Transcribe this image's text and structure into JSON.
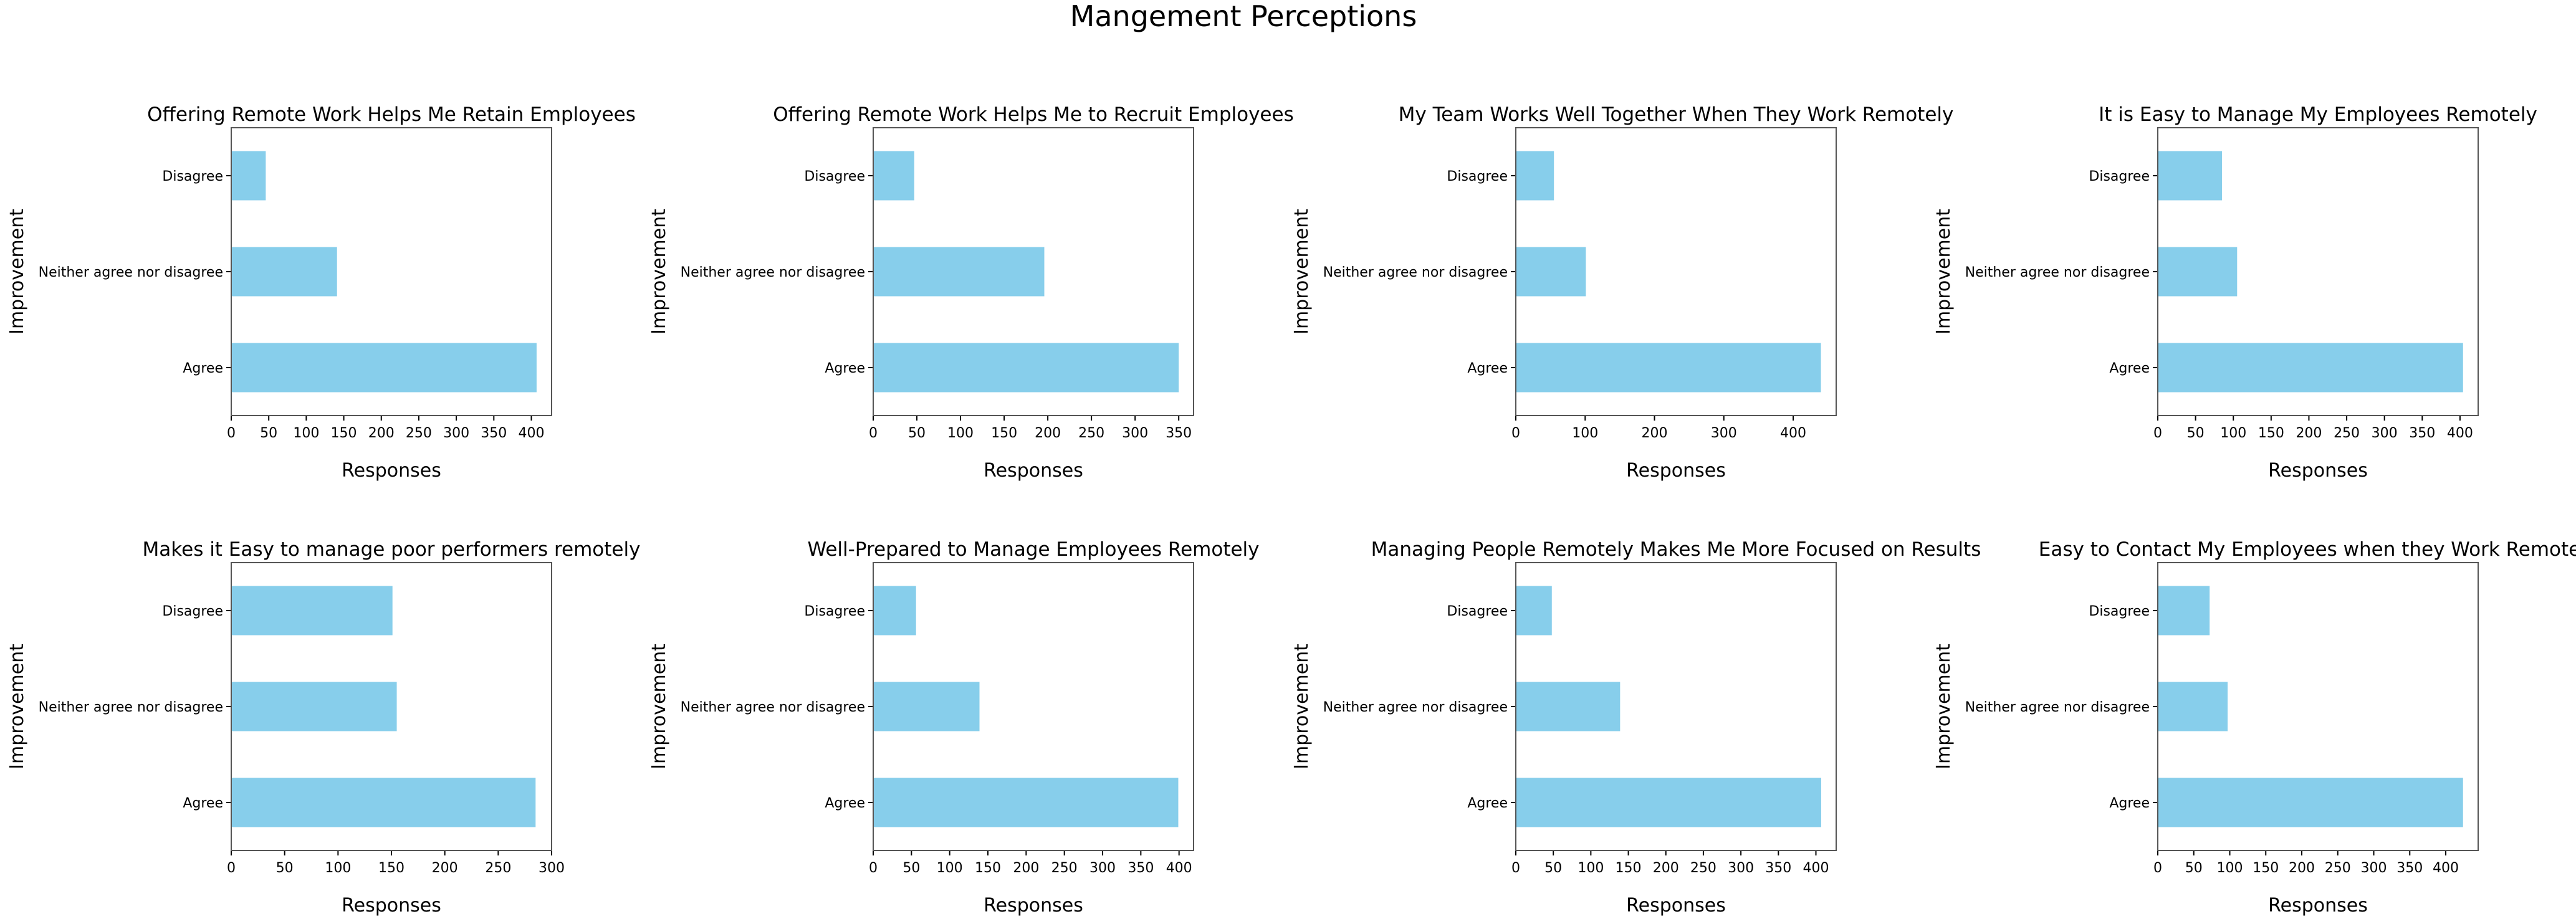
{
  "figure": {
    "title": "Mangement Perceptions"
  },
  "colors": {
    "bar": "#87CEEB",
    "axis": "#000000",
    "frame": "#555555",
    "background": "#ffffff"
  },
  "chart_data": [
    {
      "type": "bar",
      "orientation": "horizontal",
      "title": "Offering Remote Work Helps Me Retain Employees",
      "categories": [
        "Agree",
        "Neither agree nor disagree",
        "Disagree"
      ],
      "values": [
        407,
        141,
        46
      ],
      "xlabel": "Responses",
      "ylabel": "Improvement",
      "xlim": [
        0,
        427
      ],
      "xticks": [
        0,
        50,
        100,
        150,
        200,
        250,
        300,
        350,
        400
      ]
    },
    {
      "type": "bar",
      "orientation": "horizontal",
      "title": "Offering Remote Work Helps Me to Recruit Employees",
      "categories": [
        "Agree",
        "Neither agree nor disagree",
        "Disagree"
      ],
      "values": [
        350,
        196,
        47
      ],
      "xlabel": "Responses",
      "ylabel": "Improvement",
      "xlim": [
        0,
        367
      ],
      "xticks": [
        0,
        50,
        100,
        150,
        200,
        250,
        300,
        350
      ]
    },
    {
      "type": "bar",
      "orientation": "horizontal",
      "title": "My Team Works Well Together When They Work Remotely",
      "categories": [
        "Agree",
        "Neither agree nor disagree",
        "Disagree"
      ],
      "values": [
        440,
        101,
        55
      ],
      "xlabel": "Responses",
      "ylabel": "Improvement",
      "xlim": [
        0,
        462
      ],
      "xticks": [
        0,
        100,
        200,
        300,
        400
      ]
    },
    {
      "type": "bar",
      "orientation": "horizontal",
      "title": "It is Easy to Manage My Employees Remotely",
      "categories": [
        "Agree",
        "Neither agree nor disagree",
        "Disagree"
      ],
      "values": [
        404,
        105,
        85
      ],
      "xlabel": "Responses",
      "ylabel": "Improvement",
      "xlim": [
        0,
        424
      ],
      "xticks": [
        0,
        50,
        100,
        150,
        200,
        250,
        300,
        350,
        400
      ]
    },
    {
      "type": "bar",
      "orientation": "horizontal",
      "title": "Makes it Easy to manage poor performers remotely",
      "categories": [
        "Agree",
        "Neither agree nor disagree",
        "Disagree"
      ],
      "values": [
        285,
        155,
        151
      ],
      "xlabel": "Responses",
      "ylabel": "Improvement",
      "xlim": [
        0,
        300
      ],
      "xticks": [
        0,
        50,
        100,
        150,
        200,
        250,
        300
      ]
    },
    {
      "type": "bar",
      "orientation": "horizontal",
      "title": "Well-Prepared to Manage Employees Remotely",
      "categories": [
        "Agree",
        "Neither agree nor disagree",
        "Disagree"
      ],
      "values": [
        399,
        139,
        56
      ],
      "xlabel": "Responses",
      "ylabel": "Improvement",
      "xlim": [
        0,
        419
      ],
      "xticks": [
        0,
        50,
        100,
        150,
        200,
        250,
        300,
        350,
        400
      ]
    },
    {
      "type": "bar",
      "orientation": "horizontal",
      "title": "Managing People Remotely Makes Me More Focused on Results",
      "categories": [
        "Agree",
        "Neither agree nor disagree",
        "Disagree"
      ],
      "values": [
        407,
        139,
        48
      ],
      "xlabel": "Responses",
      "ylabel": "Improvement",
      "xlim": [
        0,
        427
      ],
      "xticks": [
        0,
        50,
        100,
        150,
        200,
        250,
        300,
        350,
        400
      ]
    },
    {
      "type": "bar",
      "orientation": "horizontal",
      "title": "Easy to Contact My Employees when they Work Remotely",
      "categories": [
        "Agree",
        "Neither agree nor disagree",
        "Disagree"
      ],
      "values": [
        424,
        97,
        72
      ],
      "xlabel": "Responses",
      "ylabel": "Improvement",
      "xlim": [
        0,
        445
      ],
      "xticks": [
        0,
        50,
        100,
        150,
        200,
        250,
        300,
        350,
        400
      ]
    }
  ]
}
